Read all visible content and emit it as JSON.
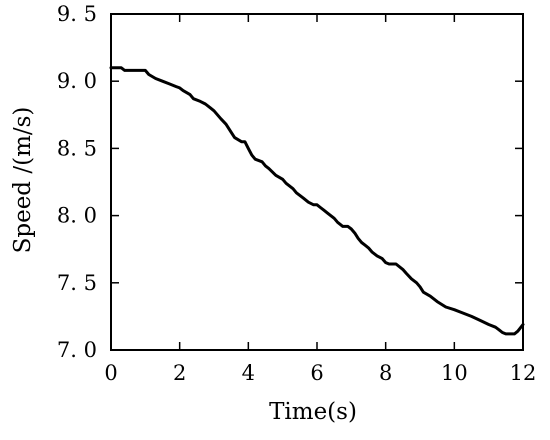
{
  "chart_data": {
    "type": "line",
    "title": "",
    "xlabel": "Time(s)",
    "ylabel": "Speed /(m/s)",
    "xlim": [
      0,
      12
    ],
    "ylim": [
      7.0,
      9.5
    ],
    "xticks": [
      0,
      2,
      4,
      6,
      8,
      10,
      12
    ],
    "xtick_labels": [
      "0",
      "2",
      "4",
      "6",
      "8",
      "10",
      "12"
    ],
    "yticks": [
      7.0,
      7.5,
      8.0,
      8.5,
      9.0,
      9.5
    ],
    "ytick_labels": [
      "7. 0",
      "7. 5",
      "8. 0",
      "8. 5",
      "9. 0",
      "9. 5"
    ],
    "grid": false,
    "legend": "none",
    "line_color": "#000000",
    "series": [
      {
        "x": [
          0,
          0.3,
          0.4,
          0.6,
          1.0,
          1.1,
          1.3,
          1.5,
          1.7,
          1.9,
          2.0,
          2.1,
          2.3,
          2.4,
          2.6,
          2.75,
          2.9,
          3.0,
          3.2,
          3.35,
          3.5,
          3.6,
          3.8,
          3.9,
          4.0,
          4.1,
          4.2,
          4.4,
          4.5,
          4.6,
          4.8,
          5.0,
          5.1,
          5.3,
          5.4,
          5.6,
          5.75,
          5.9,
          6.0,
          6.1,
          6.2,
          6.3,
          6.5,
          6.6,
          6.75,
          6.9,
          7.0,
          7.1,
          7.2,
          7.3,
          7.4,
          7.5,
          7.6,
          7.75,
          7.9,
          8.0,
          8.1,
          8.3,
          8.5,
          8.6,
          8.75,
          8.9,
          9.0,
          9.1,
          9.3,
          9.5,
          9.75,
          10.0,
          10.2,
          10.5,
          10.75,
          11.0,
          11.2,
          11.3,
          11.4,
          11.5,
          11.6,
          11.75,
          11.85,
          12.0
        ],
        "y": [
          9.1,
          9.1,
          9.08,
          9.08,
          9.08,
          9.05,
          9.02,
          9.0,
          8.98,
          8.96,
          8.95,
          8.93,
          8.9,
          8.87,
          8.85,
          8.83,
          8.8,
          8.78,
          8.72,
          8.68,
          8.62,
          8.58,
          8.55,
          8.55,
          8.5,
          8.45,
          8.42,
          8.4,
          8.37,
          8.35,
          8.3,
          8.27,
          8.24,
          8.2,
          8.17,
          8.13,
          8.1,
          8.08,
          8.08,
          8.06,
          8.04,
          8.02,
          7.98,
          7.95,
          7.92,
          7.92,
          7.9,
          7.87,
          7.83,
          7.8,
          7.78,
          7.76,
          7.73,
          7.7,
          7.68,
          7.65,
          7.64,
          7.64,
          7.6,
          7.57,
          7.53,
          7.5,
          7.47,
          7.43,
          7.4,
          7.36,
          7.32,
          7.3,
          7.28,
          7.25,
          7.22,
          7.19,
          7.17,
          7.15,
          7.13,
          7.12,
          7.12,
          7.12,
          7.14,
          7.19
        ]
      }
    ]
  }
}
